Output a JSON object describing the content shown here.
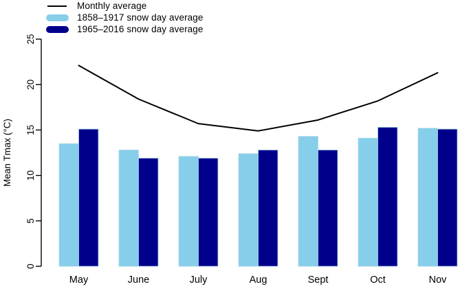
{
  "legend": {
    "items": [
      {
        "label": "Monthly average",
        "swatch": "line",
        "color": "#000000"
      },
      {
        "label": "1858–1917 snow day average",
        "swatch": "thick-bar",
        "color": "#87CEEB"
      },
      {
        "label": "1965–2016 snow day average",
        "swatch": "thick-bar",
        "color": "#00008B"
      }
    ]
  },
  "chart_data": {
    "type": "bar",
    "subtype": "grouped-bars-with-line-overlay",
    "categories": [
      "May",
      "June",
      "July",
      "Aug",
      "Sept",
      "Oct",
      "Nov"
    ],
    "series": [
      {
        "name": "Monthly average",
        "type": "line",
        "color": "#000000",
        "values": [
          22.1,
          18.4,
          15.7,
          14.9,
          16.1,
          18.2,
          21.3
        ]
      },
      {
        "name": "1858–1917 snow day average",
        "type": "bar",
        "color": "#87CEEB",
        "values": [
          13.5,
          12.8,
          12.1,
          12.4,
          14.3,
          14.1,
          15.2
        ]
      },
      {
        "name": "1965–2016 snow day average",
        "type": "bar",
        "color": "#00008B",
        "values": [
          15.1,
          11.9,
          11.9,
          12.8,
          12.8,
          15.3,
          15.1
        ]
      }
    ],
    "title": "",
    "xlabel": "",
    "ylabel": "Mean Tmax (°C)",
    "ylim": [
      0,
      25
    ],
    "yticks": [
      0,
      5,
      10,
      15,
      20,
      25
    ],
    "grid": false,
    "legend_position": "top-left",
    "bar_border_color": "#ADD8E6",
    "axis_color": "#000000"
  }
}
